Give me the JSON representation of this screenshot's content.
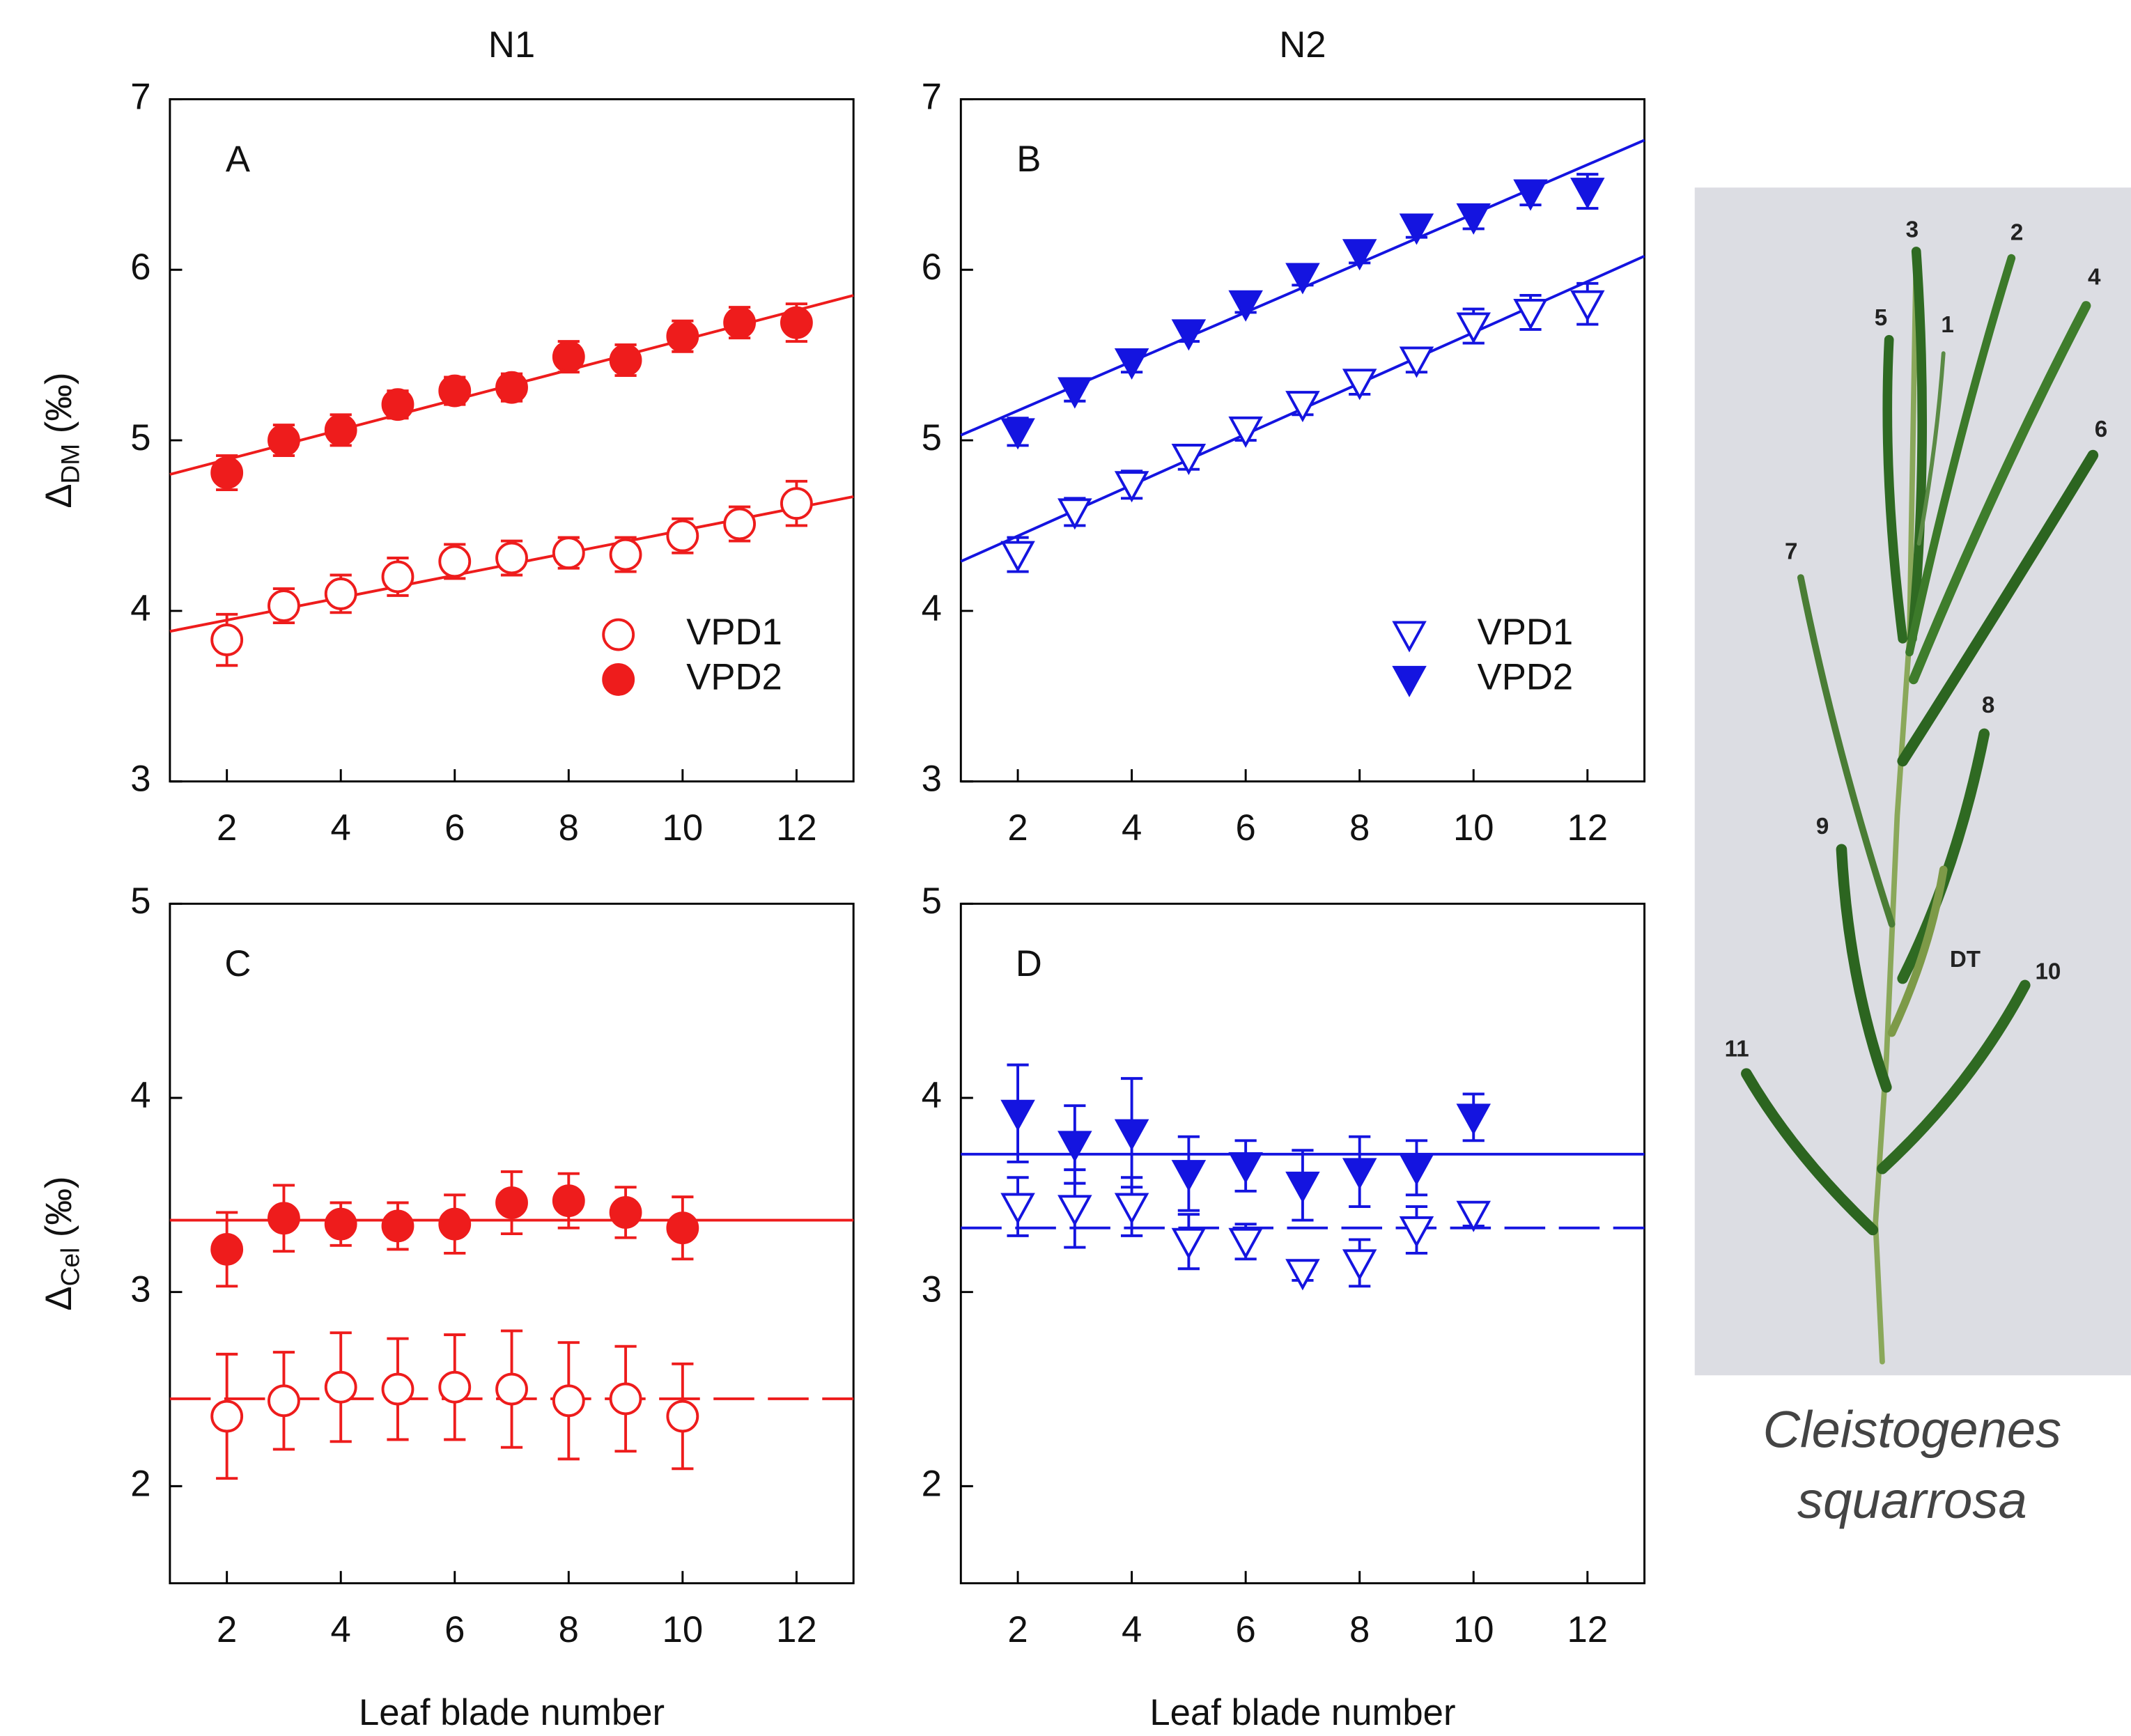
{
  "chart_data": [
    {
      "type": "scatter",
      "title": "N1",
      "panel_label": "A",
      "y_label": {
        "symbol": "Δ",
        "subscript": "DM",
        "unit": " (‰)"
      },
      "x": [
        2,
        3,
        4,
        5,
        6,
        7,
        8,
        9,
        10,
        11,
        12
      ],
      "xlim": [
        1,
        13
      ],
      "xticks": [
        2,
        4,
        6,
        8,
        10,
        12
      ],
      "ylim": [
        3,
        7
      ],
      "yticks": [
        3,
        4,
        5,
        6,
        7
      ],
      "legend": "lower right",
      "series": [
        {
          "name": "VPD1",
          "color": "#ee1c1c",
          "marker": "circle",
          "filled": false,
          "line_style": "solid",
          "values": [
            3.83,
            4.03,
            4.1,
            4.2,
            4.29,
            4.31,
            4.34,
            4.33,
            4.44,
            4.51,
            4.63
          ],
          "errors": [
            0.15,
            0.1,
            0.11,
            0.11,
            0.1,
            0.1,
            0.09,
            0.1,
            0.1,
            0.1,
            0.13
          ],
          "fit": {
            "x": [
              1,
              13
            ],
            "y": [
              3.88,
              4.67
            ]
          }
        },
        {
          "name": "VPD2",
          "color": "#ee1c1c",
          "marker": "circle",
          "filled": true,
          "line_style": "solid",
          "values": [
            4.81,
            5.0,
            5.06,
            5.21,
            5.29,
            5.31,
            5.49,
            5.47,
            5.61,
            5.69,
            5.69
          ],
          "errors": [
            0.1,
            0.09,
            0.09,
            0.08,
            0.08,
            0.08,
            0.09,
            0.09,
            0.09,
            0.09,
            0.11
          ],
          "fit": {
            "x": [
              1,
              13
            ],
            "y": [
              4.8,
              5.85
            ]
          }
        }
      ]
    },
    {
      "type": "scatter",
      "title": "N2",
      "panel_label": "B",
      "x": [
        2,
        3,
        4,
        5,
        6,
        7,
        8,
        9,
        10,
        11,
        12
      ],
      "xlim": [
        1,
        13
      ],
      "xticks": [
        2,
        4,
        6,
        8,
        10,
        12
      ],
      "ylim": [
        3,
        7
      ],
      "yticks": [
        3,
        4,
        5,
        6,
        7
      ],
      "legend": "lower right",
      "series": [
        {
          "name": "VPD1",
          "color": "#1414e0",
          "marker": "triangle-down",
          "filled": false,
          "line_style": "solid",
          "values": [
            4.33,
            4.58,
            4.74,
            4.9,
            5.06,
            5.21,
            5.34,
            5.47,
            5.67,
            5.75,
            5.8
          ],
          "errors": [
            0.1,
            0.08,
            0.08,
            0.07,
            0.06,
            0.06,
            0.07,
            0.07,
            0.1,
            0.1,
            0.12
          ],
          "fit": {
            "x": [
              1,
              13
            ],
            "y": [
              4.29,
              6.08
            ]
          }
        },
        {
          "name": "VPD2",
          "color": "#1414e0",
          "marker": "triangle-down",
          "filled": true,
          "line_style": "solid",
          "values": [
            5.05,
            5.29,
            5.46,
            5.63,
            5.8,
            5.96,
            6.1,
            6.25,
            6.31,
            6.45,
            6.46
          ],
          "errors": [
            0.08,
            0.06,
            0.06,
            0.05,
            0.05,
            0.05,
            0.06,
            0.06,
            0.07,
            0.07,
            0.1
          ],
          "fit": {
            "x": [
              1,
              13
            ],
            "y": [
              5.03,
              6.76
            ]
          }
        }
      ]
    },
    {
      "type": "scatter",
      "panel_label": "C",
      "x_label": "Leaf blade number",
      "y_label": {
        "symbol": "Δ",
        "subscript": "Cel",
        "unit": " (‰)"
      },
      "x": [
        2,
        3,
        4,
        5,
        6,
        7,
        8,
        9,
        10
      ],
      "xlim": [
        1,
        13
      ],
      "xticks": [
        2,
        4,
        6,
        8,
        10,
        12
      ],
      "ylim": [
        1.5,
        5
      ],
      "yticks": [
        2,
        3,
        4,
        5
      ],
      "series": [
        {
          "color": "#ee1c1c",
          "marker": "circle",
          "filled": false,
          "line_style": "dashed",
          "values": [
            2.36,
            2.44,
            2.51,
            2.5,
            2.51,
            2.5,
            2.44,
            2.45,
            2.36
          ],
          "errors": [
            0.32,
            0.25,
            0.28,
            0.26,
            0.27,
            0.3,
            0.3,
            0.27,
            0.27
          ],
          "fit": {
            "x": [
              1,
              13
            ],
            "y": [
              2.45,
              2.45
            ]
          }
        },
        {
          "color": "#ee1c1c",
          "marker": "circle",
          "filled": true,
          "line_style": "solid",
          "values": [
            3.22,
            3.38,
            3.35,
            3.34,
            3.35,
            3.46,
            3.47,
            3.41,
            3.33
          ],
          "errors": [
            0.19,
            0.17,
            0.11,
            0.12,
            0.15,
            0.16,
            0.14,
            0.13,
            0.16
          ],
          "fit": {
            "x": [
              1,
              13
            ],
            "y": [
              3.37,
              3.37
            ]
          }
        }
      ]
    },
    {
      "type": "scatter",
      "panel_label": "D",
      "x_label": "Leaf blade number",
      "x": [
        2,
        3,
        4,
        5,
        6,
        7,
        8,
        9,
        10
      ],
      "xlim": [
        1,
        13
      ],
      "xticks": [
        2,
        4,
        6,
        8,
        10,
        12
      ],
      "ylim": [
        1.5,
        5
      ],
      "yticks": [
        2,
        3,
        4,
        5
      ],
      "series": [
        {
          "color": "#1414e0",
          "marker": "triangle-down",
          "filled": false,
          "line_style": "dashed",
          "values": [
            3.44,
            3.43,
            3.44,
            3.26,
            3.26,
            3.1,
            3.15,
            3.32,
            3.4
          ],
          "errors": [
            0.15,
            0.2,
            0.15,
            0.14,
            0.09,
            0.04,
            0.12,
            0.12,
            0.06
          ],
          "fit": {
            "x": [
              1,
              13
            ],
            "y": [
              3.33,
              3.33
            ]
          }
        },
        {
          "color": "#1414e0",
          "marker": "triangle-down",
          "filled": true,
          "line_style": "solid",
          "values": [
            3.92,
            3.76,
            3.82,
            3.61,
            3.65,
            3.55,
            3.62,
            3.64,
            3.9
          ],
          "errors": [
            0.25,
            0.2,
            0.28,
            0.19,
            0.13,
            0.18,
            0.18,
            0.14,
            0.12
          ],
          "fit": {
            "x": [
              1,
              13
            ],
            "y": [
              3.71,
              3.71
            ]
          }
        }
      ]
    }
  ],
  "image": {
    "labels": [
      "3",
      "2",
      "4",
      "5",
      "1",
      "6",
      "7",
      "8",
      "9",
      "DT",
      "10",
      "11"
    ],
    "caption": [
      "Cleistogenes",
      "squarrosa"
    ]
  }
}
